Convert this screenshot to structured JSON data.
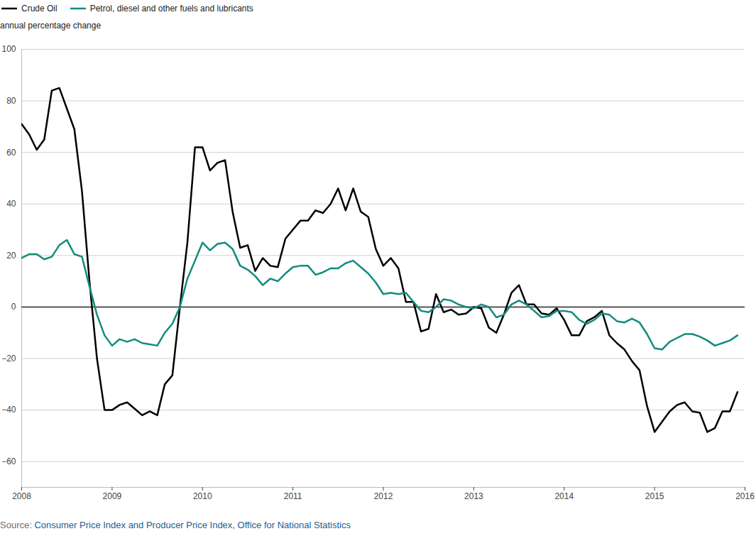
{
  "chart_data": {
    "type": "line",
    "ylabel": "annual percentage change",
    "caption": "Source: Consumer Price Index and Producer Price Index, Office for National Statistics",
    "x": [
      2008,
      2008.083,
      2008.167,
      2008.25,
      2008.333,
      2008.417,
      2008.5,
      2008.583,
      2008.667,
      2008.75,
      2008.833,
      2008.917,
      2009,
      2009.083,
      2009.167,
      2009.25,
      2009.333,
      2009.417,
      2009.5,
      2009.583,
      2009.667,
      2009.75,
      2009.833,
      2009.917,
      2010,
      2010.083,
      2010.167,
      2010.25,
      2010.333,
      2010.417,
      2010.5,
      2010.583,
      2010.667,
      2010.75,
      2010.833,
      2010.917,
      2011,
      2011.083,
      2011.167,
      2011.25,
      2011.333,
      2011.417,
      2011.5,
      2011.583,
      2011.667,
      2011.75,
      2011.833,
      2011.917,
      2012,
      2012.083,
      2012.167,
      2012.25,
      2012.333,
      2012.417,
      2012.5,
      2012.583,
      2012.667,
      2012.75,
      2012.833,
      2012.917,
      2013,
      2013.083,
      2013.167,
      2013.25,
      2013.333,
      2013.417,
      2013.5,
      2013.583,
      2013.667,
      2013.75,
      2013.833,
      2013.917,
      2014,
      2014.083,
      2014.167,
      2014.25,
      2014.333,
      2014.417,
      2014.5,
      2014.583,
      2014.667,
      2014.75,
      2014.833,
      2014.917,
      2015,
      2015.083,
      2015.167,
      2015.25,
      2015.333,
      2015.417,
      2015.5,
      2015.583,
      2015.667,
      2015.75,
      2015.833,
      2015.917
    ],
    "series": [
      {
        "name": "Crude Oil",
        "color": "#000000",
        "line_style": "solid",
        "values": [
          71,
          67,
          61,
          65,
          84,
          85,
          77,
          69,
          45,
          10,
          -20,
          -40,
          -40,
          -38,
          -37,
          -39.5,
          -42,
          -40.5,
          -42,
          -30,
          -26.5,
          0,
          25,
          62,
          62,
          53,
          56,
          57,
          37,
          23,
          24,
          14,
          19,
          16,
          15.5,
          26.5,
          30,
          33.5,
          33.5,
          37.5,
          36.5,
          40,
          46,
          37.5,
          46,
          37,
          35,
          22.5,
          16,
          19,
          15,
          2,
          2,
          -9.5,
          -8.5,
          5,
          -2,
          -1,
          -3,
          -2.5,
          0,
          -0.5,
          -8,
          -10,
          -3,
          5.5,
          8.5,
          1,
          1,
          -2.5,
          -3,
          -0.5,
          -5,
          -11,
          -11,
          -5.5,
          -4,
          -1.5,
          -11,
          -14,
          -16.5,
          -21,
          -24.5,
          -38.5,
          -48.5,
          -44.5,
          -40.5,
          -38,
          -37,
          -40.5,
          -41,
          -48.5,
          -47,
          -40.5,
          -40.5,
          -33
        ]
      },
      {
        "name": "Petrol, diesel and other fuels and lubricants",
        "color": "#118c7e",
        "line_style": "solid",
        "values": [
          19,
          20.5,
          20.5,
          18.5,
          19.5,
          24,
          26,
          20.5,
          19.5,
          8,
          -3,
          -11,
          -15,
          -12.5,
          -13.5,
          -12.5,
          -14,
          -14.5,
          -15,
          -10,
          -6.5,
          0,
          11,
          18,
          25,
          22,
          24.5,
          25,
          22.5,
          16,
          14.5,
          12,
          8.5,
          11,
          10,
          13,
          15.5,
          16,
          16,
          12.5,
          13.5,
          15,
          15,
          17,
          18,
          15.5,
          13,
          9.5,
          5,
          5.5,
          5,
          5.5,
          2,
          -1.5,
          -2,
          0,
          3,
          2.5,
          1,
          0,
          -0.5,
          1,
          0,
          -4,
          -3,
          1,
          2.5,
          1,
          -1.5,
          -4,
          -3.5,
          -1.5,
          -1.5,
          -2,
          -5,
          -6.5,
          -5,
          -2.5,
          -3,
          -5.5,
          -6,
          -4.5,
          -6,
          -10.5,
          -16,
          -16.5,
          -13.5,
          -12,
          -10.5,
          -10.5,
          -11.5,
          -13,
          -15,
          -14,
          -13,
          -11
        ]
      }
    ],
    "xlim": [
      2008,
      2016
    ],
    "xticks": [
      2008,
      2009,
      2010,
      2011,
      2012,
      2013,
      2014,
      2015,
      2016
    ],
    "ylim": [
      -70,
      100
    ],
    "yticks": [
      -60,
      -40,
      -20,
      0,
      20,
      40,
      60,
      80,
      100
    ],
    "grid": true,
    "legend": "top-left"
  }
}
